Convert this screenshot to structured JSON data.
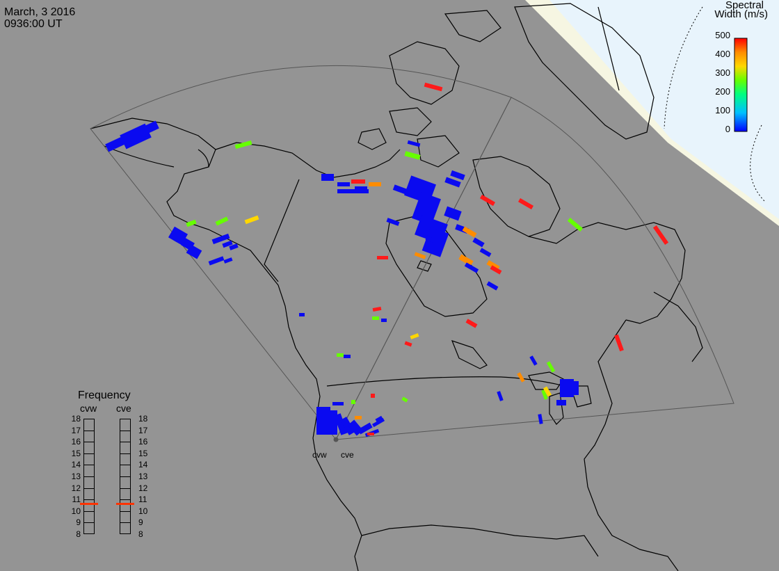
{
  "header": {
    "date": "March, 3 2016",
    "time": "0936:00 UT"
  },
  "colorbar": {
    "title_line1": "Spectral",
    "title_line2": "Width (m/s)",
    "ticks": [
      "500",
      "400",
      "300",
      "200",
      "100",
      "0"
    ],
    "min": 0,
    "max": 500
  },
  "frequency_panel": {
    "title": "Frequency",
    "columns": [
      {
        "radar": "cvw",
        "frequency_mhz": 10.7
      },
      {
        "radar": "cve",
        "frequency_mhz": 10.7
      }
    ],
    "scale_labels": [
      "18",
      "17",
      "16",
      "15",
      "14",
      "13",
      "12",
      "11",
      "10",
      "9",
      "8"
    ],
    "indicator_color": "#ff3300"
  },
  "radars": [
    {
      "name": "cvw"
    },
    {
      "name": "cve"
    }
  ],
  "colors": {
    "ocean": "#949494",
    "dayside": "#e8f4fc",
    "terminator": "#f8f8e6",
    "coastline": "#000000",
    "field_of_view": "#555555",
    "colormap": [
      "#0000ff",
      "#00bfff",
      "#00ff80",
      "#66ff00",
      "#ffd700",
      "#ff8c00",
      "#ff0000"
    ]
  }
}
